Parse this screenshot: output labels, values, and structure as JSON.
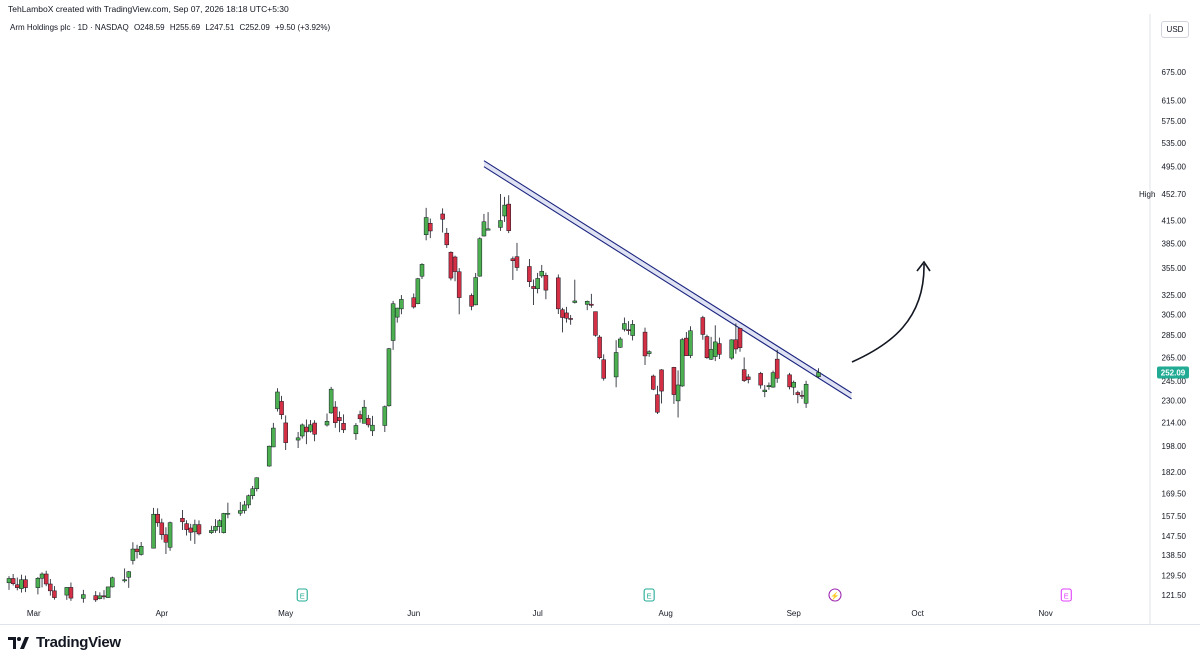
{
  "header": {
    "credit": "TehLamboX created with TradingView.com, Sep 07, 2026 18:18 UTC+5:30",
    "symbol": "Arm Holdings plc · 1D · NASDAQ",
    "ohlc": {
      "o": "O248.59",
      "h": "H255.69",
      "l": "L247.51",
      "c": "C252.09",
      "change": "+9.50 (+3.92%)"
    },
    "currency": "USD"
  },
  "price_axis": {
    "ticks": [
      "675.00",
      "615.00",
      "575.00",
      "535.00",
      "495.00",
      "415.00",
      "385.00",
      "355.00",
      "325.00",
      "305.00",
      "285.00",
      "265.00",
      "245.00",
      "230.00",
      "214.00",
      "198.00",
      "182.00",
      "169.50",
      "157.50",
      "147.50",
      "138.50",
      "129.50",
      "121.50"
    ],
    "high_label": "High",
    "high_value": "452.70",
    "last_value": "252.09",
    "last_color": "#22ab94"
  },
  "time_axis": [
    "Mar",
    "Apr",
    "May",
    "Jun",
    "Jul",
    "Aug",
    "Sep",
    "Oct",
    "Nov"
  ],
  "event_markers": [
    {
      "label": "E",
      "color": "#22ab94"
    },
    {
      "label": "E",
      "color": "#22ab94"
    },
    {
      "label": "⚡",
      "color": "#9c27b0"
    },
    {
      "label": "E",
      "color": "#e040fb"
    }
  ],
  "colors": {
    "up": "#4caf50",
    "down": "#d32f45",
    "trendline": "#1a237e",
    "trendline_fill": "#c5cae9"
  },
  "footer": {
    "brand": "TradingView"
  },
  "chart_data": {
    "type": "candlestick",
    "title": "Arm Holdings plc · 1D · NASDAQ",
    "y_scale": "log",
    "ylim": [
      118,
      760
    ],
    "candles": [
      {
        "date": "2026-02-23",
        "o": 126.5,
        "h": 129.3,
        "l": 123.6,
        "c": 128.3
      },
      {
        "date": "2026-02-24",
        "o": 128.3,
        "h": 130.2,
        "l": 125.4,
        "c": 126.1
      },
      {
        "date": "2026-02-25",
        "o": 125.7,
        "h": 128.7,
        "l": 123.4,
        "c": 124.5
      },
      {
        "date": "2026-02-26",
        "o": 124.1,
        "h": 129.9,
        "l": 122.5,
        "c": 127.8
      },
      {
        "date": "2026-02-27",
        "o": 127.8,
        "h": 129.5,
        "l": 122.7,
        "c": 124.5
      },
      {
        "date": "2026-03-02",
        "o": 124.5,
        "h": 128.9,
        "l": 121.8,
        "c": 128.4
      },
      {
        "date": "2026-03-03",
        "o": 128.4,
        "h": 130.9,
        "l": 124.6,
        "c": 130.2
      },
      {
        "date": "2026-03-04",
        "o": 130.2,
        "h": 131.6,
        "l": 125.1,
        "c": 126.0
      },
      {
        "date": "2026-03-05",
        "o": 126.0,
        "h": 128.1,
        "l": 121.3,
        "c": 123.2
      },
      {
        "date": "2026-03-06",
        "o": 123.2,
        "h": 125.1,
        "l": 119.7,
        "c": 120.5
      },
      {
        "date": "2026-03-09",
        "o": 121.5,
        "h": 124.7,
        "l": 119.6,
        "c": 124.6
      },
      {
        "date": "2026-03-10",
        "o": 124.6,
        "h": 126.6,
        "l": 119.2,
        "c": 120.3
      },
      {
        "date": "2026-03-13",
        "o": 120.2,
        "h": 123.6,
        "l": 118.5,
        "c": 121.7
      },
      {
        "date": "2026-03-16",
        "o": 121.3,
        "h": 123.1,
        "l": 118.8,
        "c": 119.6
      },
      {
        "date": "2026-03-17",
        "o": 120.1,
        "h": 122.6,
        "l": 119.8,
        "c": 121.2
      },
      {
        "date": "2026-03-18",
        "o": 121.2,
        "h": 123.5,
        "l": 119.8,
        "c": 121.0
      },
      {
        "date": "2026-03-19",
        "o": 120.5,
        "h": 124.9,
        "l": 120.4,
        "c": 124.8
      },
      {
        "date": "2026-03-20",
        "o": 124.8,
        "h": 129.1,
        "l": 124.5,
        "c": 128.6
      },
      {
        "date": "2026-03-23",
        "o": 127.3,
        "h": 132.6,
        "l": 126.6,
        "c": 127.8
      },
      {
        "date": "2026-03-24",
        "o": 128.8,
        "h": 131.5,
        "l": 124.4,
        "c": 131.2
      },
      {
        "date": "2026-03-25",
        "o": 136.1,
        "h": 144.5,
        "l": 134.3,
        "c": 141.3
      },
      {
        "date": "2026-03-26",
        "o": 141.3,
        "h": 143.3,
        "l": 137.0,
        "c": 140.1
      },
      {
        "date": "2026-03-27",
        "o": 138.8,
        "h": 144.6,
        "l": 138.3,
        "c": 142.6
      },
      {
        "date": "2026-03-30",
        "o": 141.7,
        "h": 161.7,
        "l": 141.7,
        "c": 158.4
      },
      {
        "date": "2026-03-31",
        "o": 158.4,
        "h": 161.5,
        "l": 152.0,
        "c": 154.0
      },
      {
        "date": "2026-04-01",
        "o": 154.0,
        "h": 156.1,
        "l": 145.7,
        "c": 148.1
      },
      {
        "date": "2026-04-02",
        "o": 148.1,
        "h": 151.8,
        "l": 139.0,
        "c": 144.5
      },
      {
        "date": "2026-04-03",
        "o": 142.1,
        "h": 154.6,
        "l": 140.5,
        "c": 154.1
      },
      {
        "date": "2026-04-06",
        "o": 156.3,
        "h": 160.6,
        "l": 150.4,
        "c": 154.5
      },
      {
        "date": "2026-04-07",
        "o": 153.6,
        "h": 155.3,
        "l": 147.7,
        "c": 150.6
      },
      {
        "date": "2026-04-08",
        "o": 151.4,
        "h": 153.5,
        "l": 145.2,
        "c": 149.3
      },
      {
        "date": "2026-04-09",
        "o": 149.5,
        "h": 155.6,
        "l": 143.7,
        "c": 153.1
      },
      {
        "date": "2026-04-10",
        "o": 153.1,
        "h": 155.2,
        "l": 147.8,
        "c": 148.5
      },
      {
        "date": "2026-04-13",
        "o": 149.1,
        "h": 152.5,
        "l": 148.5,
        "c": 150.2
      },
      {
        "date": "2026-04-14",
        "o": 150.2,
        "h": 155.9,
        "l": 149.0,
        "c": 152.2
      },
      {
        "date": "2026-04-15",
        "o": 152.1,
        "h": 155.8,
        "l": 148.9,
        "c": 155.1
      },
      {
        "date": "2026-04-16",
        "o": 149.1,
        "h": 159.1,
        "l": 148.7,
        "c": 158.8
      },
      {
        "date": "2026-04-17",
        "o": 158.6,
        "h": 164.5,
        "l": 156.3,
        "c": 158.9
      },
      {
        "date": "2026-04-20",
        "o": 158.9,
        "h": 164.9,
        "l": 157.6,
        "c": 160.3
      },
      {
        "date": "2026-04-21",
        "o": 160.3,
        "h": 165.5,
        "l": 158.8,
        "c": 163.3
      },
      {
        "date": "2026-04-22",
        "o": 163.3,
        "h": 168.9,
        "l": 161.5,
        "c": 168.3
      },
      {
        "date": "2026-04-23",
        "o": 168.3,
        "h": 173.8,
        "l": 166.3,
        "c": 172.2
      },
      {
        "date": "2026-04-24",
        "o": 172.2,
        "h": 178.8,
        "l": 170.7,
        "c": 178.5
      },
      {
        "date": "2026-04-27",
        "o": 185.5,
        "h": 198.4,
        "l": 185.1,
        "c": 198.0
      },
      {
        "date": "2026-04-28",
        "o": 197.5,
        "h": 213.7,
        "l": 197.4,
        "c": 210.1
      },
      {
        "date": "2026-04-29",
        "o": 223.8,
        "h": 239.4,
        "l": 221.8,
        "c": 236.5
      },
      {
        "date": "2026-04-30",
        "o": 229.3,
        "h": 233.5,
        "l": 216.3,
        "c": 219.5
      },
      {
        "date": "2026-05-01",
        "o": 213.7,
        "h": 219.0,
        "l": 195.5,
        "c": 200.3
      },
      {
        "date": "2026-05-04",
        "o": 202.0,
        "h": 207.4,
        "l": 196.8,
        "c": 203.5
      },
      {
        "date": "2026-05-05",
        "o": 204.7,
        "h": 213.3,
        "l": 203.0,
        "c": 212.3
      },
      {
        "date": "2026-05-06",
        "o": 210.8,
        "h": 216.1,
        "l": 199.3,
        "c": 207.5
      },
      {
        "date": "2026-05-07",
        "o": 207.9,
        "h": 215.7,
        "l": 207.0,
        "c": 212.4
      },
      {
        "date": "2026-05-08",
        "o": 213.6,
        "h": 215.6,
        "l": 201.2,
        "c": 205.9
      },
      {
        "date": "2026-05-11",
        "o": 212.2,
        "h": 220.4,
        "l": 211.2,
        "c": 214.8
      },
      {
        "date": "2026-05-12",
        "o": 220.8,
        "h": 240.5,
        "l": 220.2,
        "c": 238.7
      },
      {
        "date": "2026-05-13",
        "o": 225.1,
        "h": 229.5,
        "l": 210.3,
        "c": 213.8
      },
      {
        "date": "2026-05-14",
        "o": 217.6,
        "h": 221.8,
        "l": 207.3,
        "c": 215.3
      },
      {
        "date": "2026-05-15",
        "o": 213.4,
        "h": 219.8,
        "l": 206.7,
        "c": 208.9
      },
      {
        "date": "2026-05-18",
        "o": 206.2,
        "h": 213.5,
        "l": 202.1,
        "c": 211.9
      },
      {
        "date": "2026-05-19",
        "o": 219.6,
        "h": 222.5,
        "l": 213.9,
        "c": 216.6
      },
      {
        "date": "2026-05-20",
        "o": 213.4,
        "h": 230.4,
        "l": 213.3,
        "c": 225.0
      },
      {
        "date": "2026-05-21",
        "o": 216.9,
        "h": 219.4,
        "l": 210.5,
        "c": 212.3
      },
      {
        "date": "2026-05-22",
        "o": 208.2,
        "h": 218.7,
        "l": 204.7,
        "c": 212.1
      },
      {
        "date": "2026-05-25",
        "o": 211.9,
        "h": 226.2,
        "l": 207.4,
        "c": 225.4
      },
      {
        "date": "2026-05-26",
        "o": 226.0,
        "h": 273.3,
        "l": 225.4,
        "c": 272.6
      },
      {
        "date": "2026-05-27",
        "o": 280.0,
        "h": 318.9,
        "l": 271.5,
        "c": 315.9
      },
      {
        "date": "2026-05-28",
        "o": 302.3,
        "h": 311.7,
        "l": 296.9,
        "c": 311.4
      },
      {
        "date": "2026-05-29",
        "o": 310.6,
        "h": 325.0,
        "l": 305.2,
        "c": 320.4
      },
      {
        "date": "2026-06-01",
        "o": 322.2,
        "h": 326.7,
        "l": 310.9,
        "c": 312.5
      },
      {
        "date": "2026-06-02",
        "o": 315.9,
        "h": 343.8,
        "l": 315.3,
        "c": 342.9
      },
      {
        "date": "2026-06-03",
        "o": 345.7,
        "h": 360.7,
        "l": 342.6,
        "c": 359.4
      },
      {
        "date": "2026-06-04",
        "o": 396.1,
        "h": 432.6,
        "l": 388.9,
        "c": 419.1
      },
      {
        "date": "2026-06-05",
        "o": 411.3,
        "h": 417.7,
        "l": 391.7,
        "c": 401.0
      },
      {
        "date": "2026-06-08",
        "o": 424.0,
        "h": 431.9,
        "l": 399.0,
        "c": 416.7
      },
      {
        "date": "2026-06-09",
        "o": 398.1,
        "h": 405.0,
        "l": 379.3,
        "c": 383.2
      },
      {
        "date": "2026-06-10",
        "o": 374.0,
        "h": 375.1,
        "l": 341.0,
        "c": 343.6
      },
      {
        "date": "2026-06-11",
        "o": 368.2,
        "h": 369.8,
        "l": 340.1,
        "c": 351.0
      },
      {
        "date": "2026-06-12",
        "o": 350.8,
        "h": 355.0,
        "l": 305.1,
        "c": 322.3
      },
      {
        "date": "2026-06-15",
        "o": 324.6,
        "h": 326.7,
        "l": 309.2,
        "c": 313.2
      },
      {
        "date": "2026-06-16",
        "o": 314.7,
        "h": 349.4,
        "l": 314.3,
        "c": 344.2
      },
      {
        "date": "2026-06-17",
        "o": 345.8,
        "h": 392.8,
        "l": 345.1,
        "c": 391.0
      },
      {
        "date": "2026-06-18",
        "o": 394.4,
        "h": 424.2,
        "l": 393.8,
        "c": 413.3
      },
      {
        "date": "2026-06-19",
        "o": 402.0,
        "h": 426.6,
        "l": 402.0,
        "c": 403.8
      },
      {
        "date": "2026-06-22",
        "o": 405.7,
        "h": 452.7,
        "l": 401.2,
        "c": 415.0
      },
      {
        "date": "2026-06-23",
        "o": 421.2,
        "h": 448.4,
        "l": 413.1,
        "c": 436.5
      },
      {
        "date": "2026-06-24",
        "o": 437.9,
        "h": 450.8,
        "l": 398.2,
        "c": 401.4
      },
      {
        "date": "2026-06-25",
        "o": 366.1,
        "h": 368.8,
        "l": 341.5,
        "c": 363.7
      },
      {
        "date": "2026-06-26",
        "o": 368.6,
        "h": 385.7,
        "l": 351.8,
        "c": 355.7
      },
      {
        "date": "2026-06-29",
        "o": 356.9,
        "h": 365.8,
        "l": 333.7,
        "c": 339.5
      },
      {
        "date": "2026-06-30",
        "o": 334.3,
        "h": 342.0,
        "l": 314.6,
        "c": 332.0
      },
      {
        "date": "2026-07-01",
        "o": 331.8,
        "h": 349.5,
        "l": 326.8,
        "c": 343.2
      },
      {
        "date": "2026-07-02",
        "o": 346.0,
        "h": 358.7,
        "l": 343.8,
        "c": 351.3
      },
      {
        "date": "2026-07-03",
        "o": 346.7,
        "h": 349.8,
        "l": 320.5,
        "c": 330.3
      },
      {
        "date": "2026-07-06",
        "o": 343.9,
        "h": 347.7,
        "l": 305.4,
        "c": 310.6
      },
      {
        "date": "2026-07-07",
        "o": 309.8,
        "h": 311.8,
        "l": 287.5,
        "c": 301.9
      },
      {
        "date": "2026-07-08",
        "o": 306.5,
        "h": 312.7,
        "l": 296.9,
        "c": 301.2
      },
      {
        "date": "2026-07-09",
        "o": 301.0,
        "h": 304.4,
        "l": 294.8,
        "c": 300.6
      },
      {
        "date": "2026-07-10",
        "o": 317.1,
        "h": 341.8,
        "l": 316.1,
        "c": 318.8
      },
      {
        "date": "2026-07-13",
        "o": 315.2,
        "h": 319.2,
        "l": 309.3,
        "c": 318.4
      },
      {
        "date": "2026-07-14",
        "o": 315.4,
        "h": 326.3,
        "l": 311.7,
        "c": 314.2
      },
      {
        "date": "2026-07-15",
        "o": 307.8,
        "h": 307.9,
        "l": 283.6,
        "c": 284.8
      },
      {
        "date": "2026-07-16",
        "o": 283.2,
        "h": 285.0,
        "l": 263.3,
        "c": 264.6
      },
      {
        "date": "2026-07-17",
        "o": 262.9,
        "h": 267.6,
        "l": 245.5,
        "c": 247.3
      },
      {
        "date": "2026-07-20",
        "o": 248.5,
        "h": 280.3,
        "l": 240.2,
        "c": 269.2
      },
      {
        "date": "2026-07-21",
        "o": 273.8,
        "h": 283.2,
        "l": 273.3,
        "c": 281.4
      },
      {
        "date": "2026-07-22",
        "o": 290.5,
        "h": 301.9,
        "l": 288.4,
        "c": 296.0
      },
      {
        "date": "2026-07-23",
        "o": 290.1,
        "h": 298.4,
        "l": 285.3,
        "c": 289.1
      },
      {
        "date": "2026-07-24",
        "o": 284.6,
        "h": 299.4,
        "l": 280.1,
        "c": 295.2
      },
      {
        "date": "2026-07-27",
        "o": 287.8,
        "h": 292.1,
        "l": 258.4,
        "c": 266.2
      },
      {
        "date": "2026-07-28",
        "o": 268.2,
        "h": 271.2,
        "l": 265.5,
        "c": 269.9
      },
      {
        "date": "2026-07-29",
        "o": 249.2,
        "h": 250.4,
        "l": 237.9,
        "c": 238.6
      },
      {
        "date": "2026-07-30",
        "o": 234.4,
        "h": 241.4,
        "l": 220.0,
        "c": 221.3
      },
      {
        "date": "2026-07-31",
        "o": 254.3,
        "h": 254.9,
        "l": 227.7,
        "c": 237.2
      },
      {
        "date": "2026-08-03",
        "o": 256.4,
        "h": 256.8,
        "l": 227.5,
        "c": 234.5
      },
      {
        "date": "2026-08-04",
        "o": 229.7,
        "h": 253.9,
        "l": 217.5,
        "c": 242.0
      },
      {
        "date": "2026-08-05",
        "o": 241.2,
        "h": 282.4,
        "l": 240.5,
        "c": 280.8
      },
      {
        "date": "2026-08-06",
        "o": 282.2,
        "h": 287.9,
        "l": 266.4,
        "c": 266.4
      },
      {
        "date": "2026-08-07",
        "o": 266.5,
        "h": 293.4,
        "l": 264.3,
        "c": 289.1
      },
      {
        "date": "2026-08-10",
        "o": 301.9,
        "h": 303.6,
        "l": 280.7,
        "c": 285.6
      },
      {
        "date": "2026-08-11",
        "o": 283.7,
        "h": 285.5,
        "l": 263.6,
        "c": 264.6
      },
      {
        "date": "2026-08-12",
        "o": 263.3,
        "h": 283.4,
        "l": 262.6,
        "c": 271.9
      },
      {
        "date": "2026-08-13",
        "o": 265.6,
        "h": 294.3,
        "l": 261.7,
        "c": 278.7
      },
      {
        "date": "2026-08-14",
        "o": 277.2,
        "h": 282.7,
        "l": 263.5,
        "c": 267.6
      },
      {
        "date": "2026-08-17",
        "o": 264.3,
        "h": 281.1,
        "l": 262.9,
        "c": 280.6
      },
      {
        "date": "2026-08-18",
        "o": 280.7,
        "h": 296.1,
        "l": 268.1,
        "c": 272.3
      },
      {
        "date": "2026-08-19",
        "o": 291.4,
        "h": 291.9,
        "l": 269.8,
        "c": 273.5
      },
      {
        "date": "2026-08-20",
        "o": 254.5,
        "h": 264.9,
        "l": 244.4,
        "c": 245.5
      },
      {
        "date": "2026-08-21",
        "o": 248.5,
        "h": 250.8,
        "l": 243.3,
        "c": 246.3
      },
      {
        "date": "2026-08-24",
        "o": 251.4,
        "h": 252.6,
        "l": 239.1,
        "c": 241.9
      },
      {
        "date": "2026-08-25",
        "o": 236.7,
        "h": 242.0,
        "l": 232.5,
        "c": 238.0
      },
      {
        "date": "2026-08-26",
        "o": 240.6,
        "h": 244.0,
        "l": 238.2,
        "c": 241.6
      },
      {
        "date": "2026-08-27",
        "o": 240.3,
        "h": 253.7,
        "l": 239.8,
        "c": 252.0
      },
      {
        "date": "2026-08-28",
        "o": 263.4,
        "h": 271.6,
        "l": 243.7,
        "c": 247.3
      },
      {
        "date": "2026-08-31",
        "o": 250.2,
        "h": 251.8,
        "l": 238.5,
        "c": 240.5
      },
      {
        "date": "2026-09-01",
        "o": 240.2,
        "h": 245.5,
        "l": 234.1,
        "c": 244.2
      },
      {
        "date": "2026-09-02",
        "o": 236.1,
        "h": 237.5,
        "l": 227.9,
        "c": 234.4
      },
      {
        "date": "2026-09-03",
        "o": 233.9,
        "h": 237.7,
        "l": 231.1,
        "c": 233.8
      },
      {
        "date": "2026-09-04",
        "o": 227.9,
        "h": 245.4,
        "l": 224.5,
        "c": 242.6
      },
      {
        "date": "2026-09-07",
        "o": 248.59,
        "h": 255.69,
        "l": 247.51,
        "c": 252.09
      }
    ],
    "trendline": [
      {
        "date": "2026-06-18",
        "price": 500.0
      },
      {
        "date": "2026-09-15",
        "price": 233.5
      }
    ],
    "projection_arrow": {
      "direction": "up"
    }
  }
}
